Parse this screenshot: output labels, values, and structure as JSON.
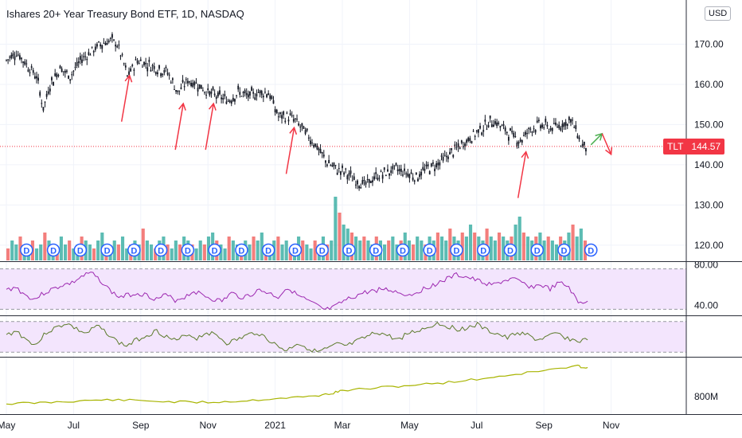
{
  "header": {
    "title": "Ishares 20+ Year Treasury Bond ETF, 1D, NASDAQ",
    "currency": "USD",
    "ticker": "TLT",
    "last_price": "144.57"
  },
  "colors": {
    "up": "#26a69a",
    "down": "#ef5350",
    "candle": "#131722",
    "arrow_red": "#f23645",
    "arrow_green": "#4caf50",
    "rsi_line": "#9c27b0",
    "osc_line": "#5b7a2a",
    "obv_line": "#a8b400",
    "band_fill": "#f3e5fd",
    "dividend": "#2962ff"
  },
  "chart_data": [
    {
      "type": "line",
      "panel": "price",
      "title": "Ishares 20+ Year Treasury Bond ETF, 1D, NASDAQ",
      "x_tick_labels": [
        "May",
        "Jul",
        "Sep",
        "Nov",
        "2021",
        "Mar",
        "May",
        "Jul",
        "Sep",
        "Nov"
      ],
      "x_tick_months": [
        0,
        2,
        4,
        6,
        8,
        10,
        12,
        14,
        16,
        18
      ],
      "y_tick_labels": [
        "120.00",
        "130.00",
        "140.00",
        "150.00",
        "160.00",
        "170.00"
      ],
      "y_ticks": [
        120,
        130,
        140,
        150,
        160,
        170
      ],
      "ylim": [
        116,
        181
      ],
      "series": [
        {
          "values": [
            [
              0.0,
              166
            ],
            [
              0.3,
              168
            ],
            [
              0.6,
              165
            ],
            [
              0.9,
              162
            ],
            [
              1.1,
              154
            ],
            [
              1.3,
              160
            ],
            [
              1.6,
              164
            ],
            [
              1.9,
              162
            ],
            [
              2.2,
              166
            ],
            [
              2.5,
              168
            ],
            [
              2.8,
              170
            ],
            [
              3.1,
              171
            ],
            [
              3.3,
              170
            ],
            [
              3.5,
              165
            ],
            [
              3.6,
              162
            ],
            [
              3.9,
              166
            ],
            [
              4.2,
              165
            ],
            [
              4.5,
              164
            ],
            [
              4.8,
              163
            ],
            [
              5.1,
              158
            ],
            [
              5.4,
              161
            ],
            [
              5.7,
              160
            ],
            [
              6.0,
              158
            ],
            [
              6.3,
              157
            ],
            [
              6.6,
              156
            ],
            [
              6.9,
              158
            ],
            [
              7.2,
              157
            ],
            [
              7.5,
              158
            ],
            [
              7.8,
              158
            ],
            [
              8.1,
              152
            ],
            [
              8.4,
              152
            ],
            [
              8.6,
              151
            ],
            [
              8.9,
              148
            ],
            [
              9.2,
              145
            ],
            [
              9.5,
              141
            ],
            [
              9.8,
              139
            ],
            [
              10.1,
              138
            ],
            [
              10.4,
              136
            ],
            [
              10.7,
              135
            ],
            [
              11.0,
              137
            ],
            [
              11.3,
              138
            ],
            [
              11.6,
              139
            ],
            [
              11.9,
              138
            ],
            [
              12.2,
              137
            ],
            [
              12.5,
              139
            ],
            [
              12.8,
              140
            ],
            [
              13.1,
              142
            ],
            [
              13.4,
              144
            ],
            [
              13.7,
              146
            ],
            [
              14.0,
              148
            ],
            [
              14.3,
              150
            ],
            [
              14.5,
              151
            ],
            [
              14.8,
              149
            ],
            [
              15.1,
              147
            ],
            [
              15.3,
              146
            ],
            [
              15.6,
              149
            ],
            [
              15.9,
              150
            ],
            [
              16.2,
              149
            ],
            [
              16.5,
              150
            ],
            [
              16.8,
              151
            ],
            [
              17.0,
              148
            ],
            [
              17.1,
              145
            ],
            [
              17.3,
              144.57
            ]
          ]
        }
      ],
      "last_price": 144.57,
      "annotations": {
        "red_up_arrows_at_month": [
          3.5,
          5.1,
          6.0,
          8.4,
          15.3
        ],
        "green_arrow_at_month": 17.4,
        "red_down_arrow_at_month": 18.0
      }
    },
    {
      "type": "bar",
      "panel": "volume",
      "values": [
        3,
        5,
        4,
        6,
        3,
        4,
        5,
        3,
        4,
        7,
        5,
        4,
        3,
        6,
        4,
        5,
        3,
        4,
        6,
        5,
        4,
        3,
        5,
        7,
        4,
        3,
        5,
        4,
        6,
        3,
        4,
        5,
        4,
        8,
        5,
        4,
        3,
        5,
        6,
        4,
        3,
        5,
        4,
        6,
        5,
        4,
        3,
        5,
        4,
        6,
        7,
        5,
        4,
        3,
        6,
        5,
        4,
        3,
        5,
        4,
        6,
        5,
        7,
        4,
        3,
        5,
        6,
        4,
        5,
        3,
        4,
        6,
        5,
        4,
        3,
        5,
        4,
        6,
        4,
        5,
        16,
        12,
        9,
        8,
        7,
        6,
        5,
        6,
        5,
        4,
        6,
        5,
        4,
        5,
        6,
        4,
        5,
        7,
        5,
        4,
        6,
        5,
        4,
        6,
        5,
        7,
        6,
        5,
        8,
        6,
        5,
        7,
        6,
        9,
        7,
        6,
        5,
        8,
        6,
        5,
        7,
        6,
        5,
        6,
        9,
        11,
        7,
        6,
        5,
        6,
        7,
        5,
        6,
        5,
        4,
        6,
        5,
        7,
        9,
        6,
        8,
        5
      ],
      "dividends_at_month": [
        0.6,
        1.4,
        2.2,
        3.0,
        3.8,
        4.6,
        5.4,
        6.2,
        7.0,
        7.8,
        8.6,
        9.4,
        10.2,
        11.0,
        11.8,
        12.6,
        13.4,
        14.2,
        15.0,
        15.8,
        16.6,
        17.4
      ]
    },
    {
      "type": "line",
      "panel": "rsi",
      "y_tick_labels": [
        "40.00",
        "80.00"
      ],
      "y_ticks": [
        40,
        80
      ],
      "band": [
        36,
        76
      ],
      "ylim": [
        30,
        82
      ],
      "series": [
        {
          "values": [
            55,
            58,
            50,
            46,
            52,
            56,
            60,
            62,
            68,
            72,
            65,
            55,
            48,
            50,
            52,
            50,
            46,
            50,
            45,
            48,
            54,
            50,
            46,
            44,
            52,
            48,
            50,
            55,
            52,
            48,
            58,
            50,
            45,
            40,
            35,
            38,
            44,
            48,
            52,
            54,
            56,
            55,
            52,
            50,
            54,
            58,
            62,
            66,
            70,
            68,
            65,
            62,
            60,
            64,
            66,
            62,
            58,
            60,
            56,
            62,
            58,
            42,
            44
          ]
        }
      ]
    },
    {
      "type": "line",
      "panel": "oscillator",
      "band": [
        -1,
        1
      ],
      "ylim": [
        -1.3,
        1.3
      ],
      "series": [
        {
          "values": [
            0.1,
            0.4,
            -0.2,
            -0.5,
            0.3,
            0.6,
            0.9,
            0.5,
            0.2,
            0.7,
            0.3,
            -0.3,
            -0.6,
            -0.2,
            0.1,
            0.4,
            0.0,
            -0.3,
            0.2,
            -0.1,
            0.3,
            0.1,
            -0.4,
            -0.2,
            0.1,
            0.3,
            -0.1,
            -0.6,
            -0.9,
            -0.4,
            -0.7,
            -1.0,
            -0.8,
            -0.5,
            -0.6,
            -0.3,
            0.0,
            0.3,
            0.1,
            -0.2,
            0.2,
            0.4,
            0.6,
            0.9,
            0.7,
            0.5,
            0.6,
            0.8,
            0.4,
            0.2,
            -0.1,
            0.3,
            0.1,
            -0.2,
            0.0,
            0.2,
            -0.1,
            -0.3,
            -0.2
          ]
        }
      ]
    },
    {
      "type": "line",
      "panel": "obv",
      "y_tick_labels": [
        "800M"
      ],
      "y_ticks": [
        800
      ],
      "ylim": [
        700,
        1020
      ],
      "series": [
        {
          "values": [
            [
              0.0,
              760
            ],
            [
              1.0,
              765
            ],
            [
              2.0,
              775
            ],
            [
              3.0,
              782
            ],
            [
              4.0,
              778
            ],
            [
              5.0,
              770
            ],
            [
              6.0,
              768
            ],
            [
              7.0,
              775
            ],
            [
              8.0,
              790
            ],
            [
              9.0,
              800
            ],
            [
              9.6,
              815
            ],
            [
              10.0,
              835
            ],
            [
              11.0,
              850
            ],
            [
              12.0,
              865
            ],
            [
              13.0,
              880
            ],
            [
              14.0,
              900
            ],
            [
              15.0,
              925
            ],
            [
              16.0,
              950
            ],
            [
              17.0,
              975
            ],
            [
              17.3,
              968
            ]
          ]
        }
      ]
    }
  ]
}
